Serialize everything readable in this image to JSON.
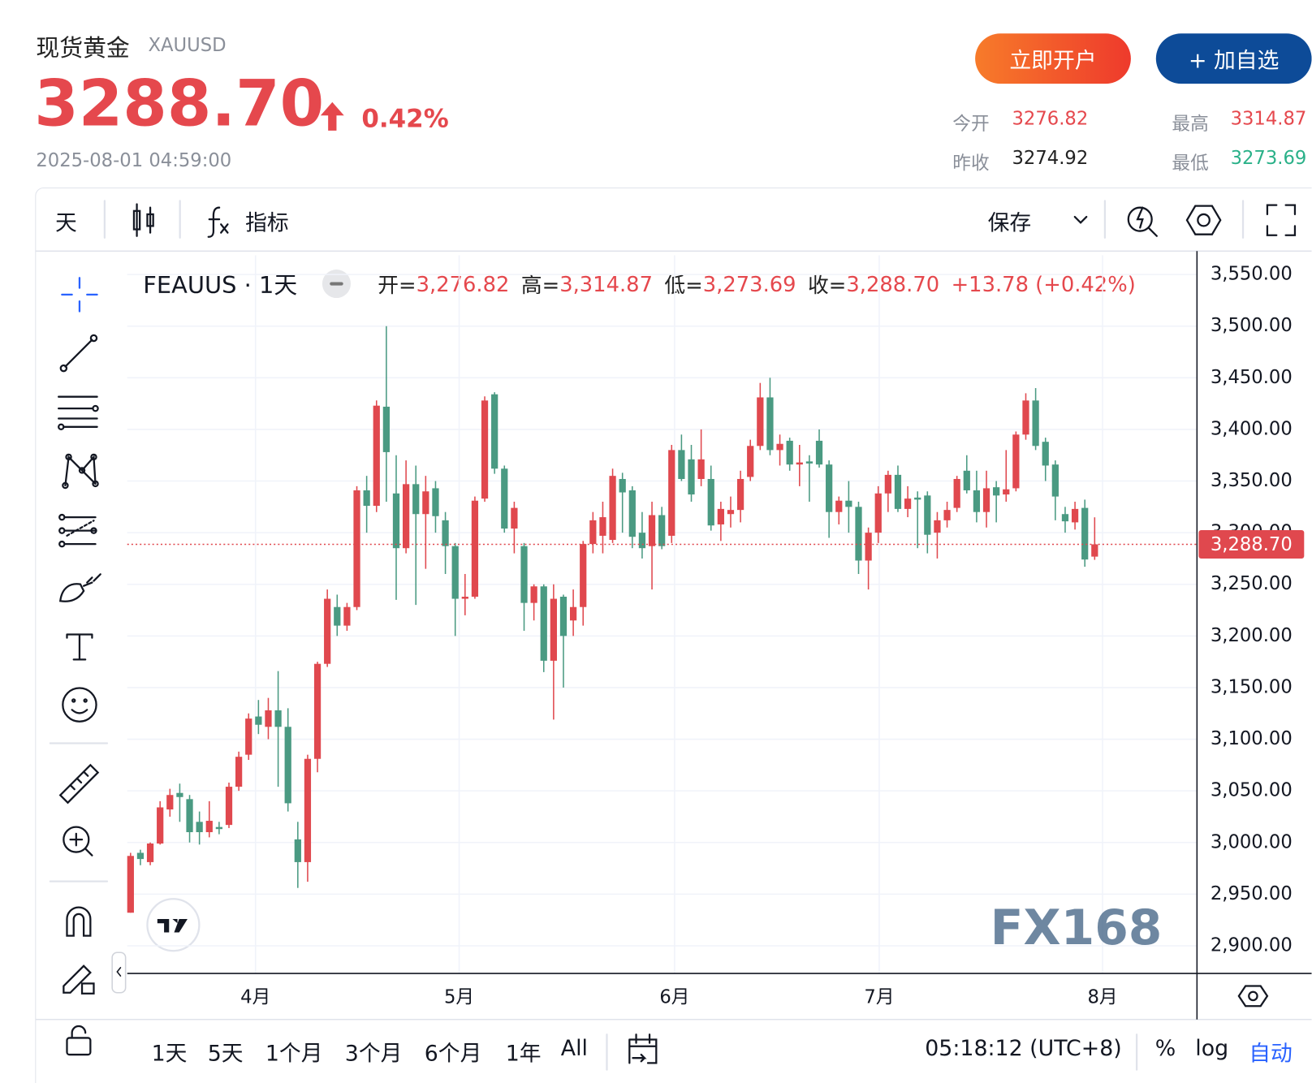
{
  "header": {
    "name": "现货黄金",
    "symbol": "XAUUSD",
    "price": "3288.70",
    "change": "0.42%",
    "time": "2025-08-01 04:59:00",
    "buttons": [
      "立即开户",
      "+ 加自选"
    ],
    "stats": [
      {
        "label": "今开",
        "value": "3276.82"
      },
      {
        "label": "最高",
        "value": "3314.87"
      },
      {
        "label": "昨收",
        "value": "3274.92"
      },
      {
        "label": "最低",
        "value": "3273.69"
      }
    ]
  },
  "toolbar": {
    "interval": "天",
    "indicators": "指标",
    "save": "保存"
  },
  "legend": {
    "symbol": "FEAUUS · 1天",
    "items": [
      {
        "label": "开=",
        "value": "3,276.82"
      },
      {
        "label": "高=",
        "value": "3,314.87"
      },
      {
        "label": "低=",
        "value": "3,273.69"
      },
      {
        "label": "收=",
        "value": "3,288.70"
      }
    ],
    "change": "+13.78 (+0.42%)"
  },
  "chart_data": {
    "type": "candlestick",
    "up_color": "#e0484e",
    "down_color": "#4a9a82",
    "grid": true,
    "categories": [
      null,
      null,
      null,
      null,
      null,
      null,
      null,
      null,
      null,
      null,
      null,
      null,
      null,
      null,
      null,
      null,
      null,
      null,
      null,
      null,
      null,
      null,
      null,
      null,
      null,
      null,
      null,
      null,
      null,
      null,
      null,
      null,
      null,
      null,
      null,
      null,
      null,
      null,
      null,
      null,
      null,
      null,
      null,
      null,
      null,
      null,
      null,
      null,
      null,
      null,
      null,
      null,
      null,
      null,
      null,
      null,
      null,
      null,
      null,
      null,
      null,
      null,
      null,
      null,
      null,
      null,
      null,
      null,
      null,
      null,
      null,
      null,
      null,
      null,
      null,
      null,
      null,
      null,
      null,
      null,
      null,
      null,
      null,
      null,
      null,
      null,
      null,
      null,
      null,
      null,
      null,
      null,
      null,
      null,
      null,
      null,
      null,
      null,
      null
    ],
    "open": [
      2932,
      2990,
      2981,
      2999,
      3032,
      3048,
      3042,
      3020,
      3010,
      3015,
      3017,
      3054,
      3085,
      3122,
      3112,
      3128,
      3112,
      3003,
      2981,
      3081,
      3173,
      3228,
      3210,
      3228,
      3341,
      3326,
      3422,
      3338,
      3285,
      3347,
      3318,
      3343,
      3312,
      3287,
      3236,
      3238,
      3333,
      3434,
      3362,
      3304,
      3287,
      3232,
      3248,
      3176,
      3238,
      3215,
      3228,
      3289,
      3297,
      3293,
      3352,
      3341,
      3300,
      3287,
      3317,
      3297,
      3380,
      3371,
      3352,
      3352,
      3308,
      3318,
      3322,
      3354,
      3384,
      3431,
      3380,
      3389,
      3366,
      3369,
      3389,
      3366,
      3320,
      3331,
      3325,
      3273,
      3300,
      3338,
      3356,
      3323,
      3334,
      3336,
      3300,
      3312,
      3324,
      3360,
      3341,
      3320,
      3344,
      3337,
      3343,
      3395,
      3428,
      3388,
      3366,
      3318,
      3310,
      3324,
      3276.82
    ],
    "high": [
      2990,
      2993,
      3000,
      3040,
      3052,
      3057,
      3046,
      3030,
      3040,
      3020,
      3058,
      3088,
      3125,
      3138,
      3140,
      3166,
      3130,
      3020,
      3085,
      3175,
      3245,
      3240,
      3232,
      3345,
      3355,
      3428,
      3500,
      3375,
      3370,
      3365,
      3355,
      3350,
      3320,
      3290,
      3260,
      3335,
      3432,
      3436,
      3365,
      3330,
      3290,
      3250,
      3250,
      3250,
      3240,
      3245,
      3292,
      3320,
      3330,
      3362,
      3358,
      3345,
      3320,
      3330,
      3325,
      3385,
      3395,
      3385,
      3400,
      3365,
      3330,
      3335,
      3360,
      3390,
      3445,
      3450,
      3395,
      3392,
      3385,
      3375,
      3400,
      3370,
      3335,
      3350,
      3330,
      3305,
      3345,
      3360,
      3365,
      3345,
      3340,
      3340,
      3320,
      3330,
      3355,
      3375,
      3360,
      3360,
      3350,
      3380,
      3398,
      3435,
      3440,
      3392,
      3370,
      3325,
      3330,
      3332,
      3314.87
    ],
    "low": [
      2932,
      2978,
      2978,
      2998,
      3025,
      3020,
      3000,
      2998,
      3005,
      3008,
      3014,
      3050,
      3080,
      3105,
      3100,
      3054,
      3030,
      2956,
      2962,
      3068,
      3170,
      3200,
      3205,
      3225,
      3300,
      3320,
      3330,
      3235,
      3280,
      3230,
      3265,
      3300,
      3260,
      3200,
      3220,
      3236,
      3330,
      3357,
      3300,
      3280,
      3205,
      3215,
      3165,
      3119,
      3150,
      3200,
      3210,
      3280,
      3280,
      3290,
      3300,
      3285,
      3275,
      3245,
      3284,
      3290,
      3350,
      3330,
      3345,
      3302,
      3292,
      3305,
      3310,
      3350,
      3380,
      3375,
      3365,
      3360,
      3345,
      3330,
      3363,
      3295,
      3308,
      3300,
      3260,
      3245,
      3290,
      3320,
      3320,
      3315,
      3285,
      3280,
      3275,
      3305,
      3320,
      3338,
      3310,
      3305,
      3310,
      3330,
      3340,
      3390,
      3380,
      3350,
      3312,
      3300,
      3303,
      3267,
      3273.69
    ],
    "close": [
      2987,
      2984,
      2999,
      3034,
      3046,
      3044,
      3010,
      3010,
      3021,
      3013,
      3054,
      3083,
      3120,
      3114,
      3128,
      3112,
      3038,
      2981,
      3081,
      3173,
      3236,
      3210,
      3228,
      3341,
      3326,
      3423,
      3378,
      3285,
      3347,
      3318,
      3340,
      3316,
      3287,
      3236,
      3238,
      3331,
      3428,
      3362,
      3304,
      3324,
      3232,
      3248,
      3176,
      3236,
      3200,
      3228,
      3289,
      3312,
      3315,
      3355,
      3339,
      3296,
      3285,
      3317,
      3287,
      3380,
      3352,
      3337,
      3371,
      3307,
      3323,
      3322,
      3352,
      3384,
      3431,
      3380,
      3386,
      3366,
      3368,
      3367,
      3366,
      3320,
      3331,
      3325,
      3273,
      3300,
      3338,
      3356,
      3323,
      3333,
      3332,
      3298,
      3312,
      3322,
      3352,
      3341,
      3320,
      3343,
      3336,
      3342,
      3395,
      3428,
      3384,
      3365,
      3335,
      3311,
      3323,
      3274,
      3288.7
    ],
    "xlim": [
      -0.34,
      108.4
    ],
    "xticks": [
      {
        "value": 12.7,
        "label": "4月"
      },
      {
        "value": 33.4,
        "label": "5月"
      },
      {
        "value": 55.3,
        "label": "6月"
      },
      {
        "value": 76.1,
        "label": "7月"
      },
      {
        "value": 98.8,
        "label": "8月"
      }
    ],
    "ylim": [
      2873.2,
      3568.6
    ],
    "yticks": [
      {
        "value": 2900,
        "label": "2,900.00"
      },
      {
        "value": 2950,
        "label": "2,950.00"
      },
      {
        "value": 3000,
        "label": "3,000.00"
      },
      {
        "value": 3050,
        "label": "3,050.00"
      },
      {
        "value": 3100,
        "label": "3,100.00"
      },
      {
        "value": 3150,
        "label": "3,150.00"
      },
      {
        "value": 3200,
        "label": "3,200.00"
      },
      {
        "value": 3250,
        "label": "3,250.00"
      },
      {
        "value": 3300,
        "label": "3,300.00"
      },
      {
        "value": 3350,
        "label": "3,350.00"
      },
      {
        "value": 3400,
        "label": "3,400.00"
      },
      {
        "value": 3450,
        "label": "3,450.00"
      },
      {
        "value": 3500,
        "label": "3,500.00"
      },
      {
        "value": 3550,
        "label": "3,550.00"
      }
    ],
    "price_line": {
      "value": 3288.7,
      "label": "3,288.70"
    },
    "watermark": "FX168"
  },
  "footer": {
    "ranges": [
      "1天",
      "5天",
      "1个月",
      "3个月",
      "6个月",
      "1年",
      "All"
    ],
    "time": "05:18:12 (UTC+8)",
    "options": [
      "%",
      "log",
      "自动"
    ]
  }
}
